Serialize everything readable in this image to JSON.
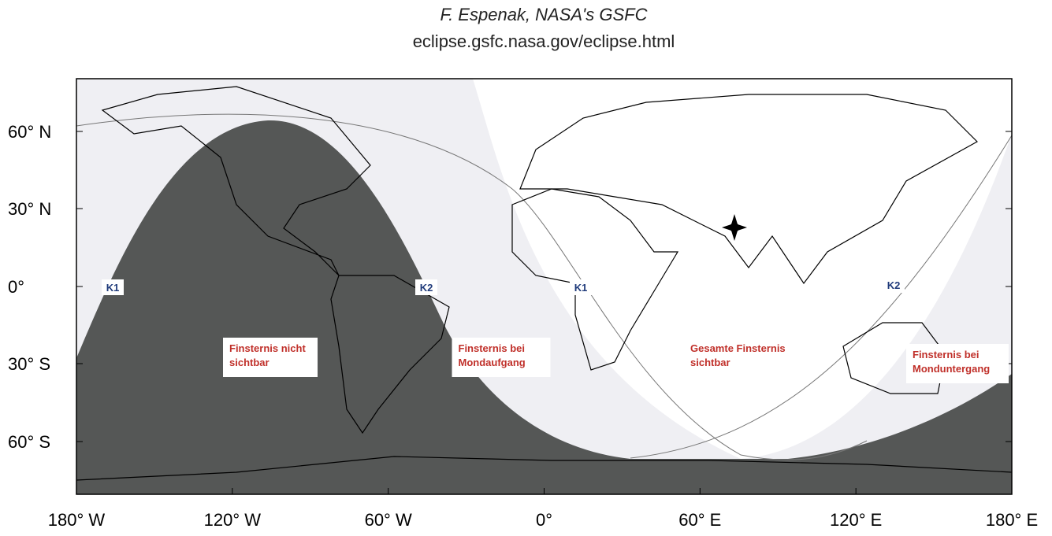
{
  "header": {
    "author": "F. Espenak, NASA's GSFC",
    "url": "eclipse.gsfc.nasa.gov/eclipse.html"
  },
  "axes": {
    "latitude": [
      "60° N",
      "30° N",
      "0°",
      "30° S",
      "60° S"
    ],
    "longitude": [
      "180° W",
      "120° W",
      "60° W",
      "0°",
      "60° E",
      "120° E",
      "180° E"
    ]
  },
  "contacts": [
    "K1",
    "K2",
    "K1",
    "K2"
  ],
  "regions": [
    {
      "lines": [
        "Finsternis nicht",
        "sichtbar"
      ]
    },
    {
      "lines": [
        "Finsternis bei",
        "Mondaufgang"
      ]
    },
    {
      "lines": [
        "Gesamte Finsternis",
        "sichtbar"
      ]
    },
    {
      "lines": [
        "Finsternis bei",
        "Monduntergang"
      ]
    }
  ]
}
